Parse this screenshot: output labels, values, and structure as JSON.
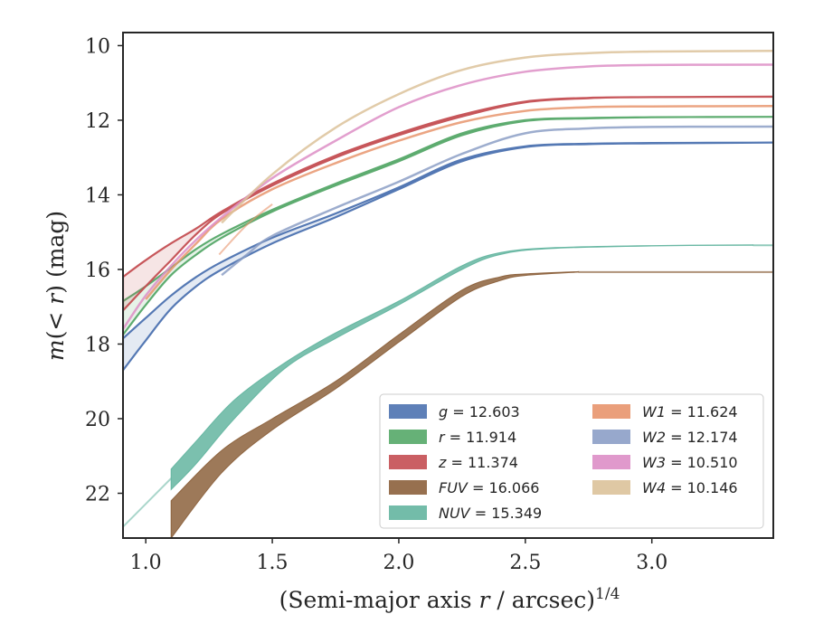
{
  "chart_data": {
    "type": "line",
    "xlabel": "(Semi-major axis r / arcsec)^{1/4}",
    "ylabel": "m(< r) (mag)",
    "xlim": [
      0.91,
      3.48
    ],
    "ylim": [
      23.2,
      9.65
    ],
    "y_inverted": true,
    "x_ticks": [
      "1.0",
      "1.5",
      "2.0",
      "2.5",
      "3.0"
    ],
    "y_ticks": [
      "10",
      "12",
      "14",
      "16",
      "18",
      "20",
      "22"
    ],
    "legend_position": "lower-right",
    "series": [
      {
        "key": "g",
        "name": "g = 12.603",
        "color": "#4c72b0",
        "width": 1,
        "upper": [
          [
            0.91,
            17.85
          ],
          [
            1.0,
            17.3
          ],
          [
            1.1,
            16.7
          ],
          [
            1.2,
            16.2
          ],
          [
            1.3,
            15.8
          ],
          [
            1.5,
            15.15
          ],
          [
            1.75,
            14.5
          ],
          [
            2.0,
            13.8
          ],
          [
            2.25,
            13.05
          ],
          [
            2.5,
            12.7
          ],
          [
            2.75,
            12.63
          ],
          [
            3.0,
            12.61
          ],
          [
            3.48,
            12.6
          ]
        ],
        "lower": [
          [
            0.91,
            18.7
          ],
          [
            1.0,
            17.9
          ],
          [
            1.1,
            17.05
          ],
          [
            1.2,
            16.45
          ],
          [
            1.3,
            16.0
          ],
          [
            1.5,
            15.3
          ],
          [
            1.75,
            14.6
          ],
          [
            2.0,
            13.85
          ],
          [
            2.25,
            13.1
          ],
          [
            2.5,
            12.72
          ],
          [
            2.75,
            12.64
          ],
          [
            3.0,
            12.62
          ],
          [
            3.48,
            12.6
          ]
        ]
      },
      {
        "key": "r",
        "name": "r = 11.914",
        "color": "#55a868",
        "width": 1,
        "upper": [
          [
            0.91,
            16.85
          ],
          [
            1.0,
            16.45
          ],
          [
            1.1,
            15.95
          ],
          [
            1.2,
            15.45
          ],
          [
            1.3,
            15.05
          ],
          [
            1.5,
            14.4
          ],
          [
            1.75,
            13.7
          ],
          [
            2.0,
            13.05
          ],
          [
            2.25,
            12.35
          ],
          [
            2.5,
            12.0
          ],
          [
            2.75,
            11.94
          ],
          [
            3.0,
            11.92
          ],
          [
            3.48,
            11.91
          ]
        ],
        "lower": [
          [
            0.91,
            17.75
          ],
          [
            1.0,
            16.95
          ],
          [
            1.1,
            16.15
          ],
          [
            1.2,
            15.6
          ],
          [
            1.3,
            15.15
          ],
          [
            1.5,
            14.45
          ],
          [
            1.75,
            13.75
          ],
          [
            2.0,
            13.1
          ],
          [
            2.25,
            12.4
          ],
          [
            2.5,
            12.02
          ],
          [
            2.75,
            11.95
          ],
          [
            3.0,
            11.92
          ],
          [
            3.48,
            11.91
          ]
        ]
      },
      {
        "key": "z",
        "name": "z = 11.374",
        "color": "#c44e52",
        "width": 1,
        "upper": [
          [
            0.91,
            16.2
          ],
          [
            1.0,
            15.75
          ],
          [
            1.1,
            15.3
          ],
          [
            1.2,
            14.9
          ],
          [
            1.3,
            14.45
          ],
          [
            1.5,
            13.7
          ],
          [
            1.75,
            12.95
          ],
          [
            2.0,
            12.35
          ],
          [
            2.25,
            11.85
          ],
          [
            2.5,
            11.5
          ],
          [
            2.75,
            11.4
          ],
          [
            3.0,
            11.38
          ],
          [
            3.48,
            11.37
          ]
        ],
        "lower": [
          [
            0.91,
            17.1
          ],
          [
            1.0,
            16.45
          ],
          [
            1.1,
            15.75
          ],
          [
            1.2,
            15.05
          ],
          [
            1.3,
            14.5
          ],
          [
            1.5,
            13.75
          ],
          [
            1.75,
            13.0
          ],
          [
            2.0,
            12.4
          ],
          [
            2.25,
            11.9
          ],
          [
            2.5,
            11.52
          ],
          [
            2.75,
            11.41
          ],
          [
            3.0,
            11.38
          ],
          [
            3.48,
            11.37
          ]
        ]
      },
      {
        "key": "FUV",
        "name": "FUV = 16.066",
        "color": "#8c613c",
        "width": 1,
        "upper": [
          [
            1.1,
            22.2
          ],
          [
            1.3,
            20.85
          ],
          [
            1.5,
            20.0
          ],
          [
            1.75,
            19.0
          ],
          [
            2.0,
            17.75
          ],
          [
            2.25,
            16.55
          ],
          [
            2.4,
            16.2
          ],
          [
            2.5,
            16.12
          ],
          [
            2.71,
            16.06
          ]
        ],
        "lower": [
          [
            1.1,
            23.2
          ],
          [
            1.3,
            21.45
          ],
          [
            1.5,
            20.3
          ],
          [
            1.75,
            19.2
          ],
          [
            2.0,
            17.95
          ],
          [
            2.25,
            16.72
          ],
          [
            2.4,
            16.3
          ],
          [
            2.5,
            16.16
          ],
          [
            2.71,
            16.07
          ]
        ],
        "tail": [
          [
            2.71,
            16.07
          ],
          [
            3.48,
            16.07
          ]
        ]
      },
      {
        "key": "NUV",
        "name": "NUV = 15.349",
        "color": "#64b5a0",
        "width": 1,
        "upper": [
          [
            1.1,
            21.35
          ],
          [
            1.2,
            20.6
          ],
          [
            1.35,
            19.5
          ],
          [
            1.55,
            18.5
          ],
          [
            1.75,
            17.7
          ],
          [
            2.0,
            16.85
          ],
          [
            2.25,
            15.9
          ],
          [
            2.4,
            15.55
          ],
          [
            2.6,
            15.42
          ],
          [
            3.0,
            15.36
          ],
          [
            3.4,
            15.34
          ]
        ],
        "lower": [
          [
            1.1,
            21.9
          ],
          [
            1.2,
            21.2
          ],
          [
            1.35,
            20.0
          ],
          [
            1.55,
            18.65
          ],
          [
            1.75,
            17.85
          ],
          [
            2.0,
            16.95
          ],
          [
            2.25,
            16.0
          ],
          [
            2.4,
            15.6
          ],
          [
            2.6,
            15.44
          ],
          [
            3.0,
            15.37
          ],
          [
            3.4,
            15.35
          ]
        ],
        "tail": [
          [
            3.4,
            15.35
          ],
          [
            3.48,
            15.35
          ]
        ],
        "lead": [
          [
            0.91,
            22.9
          ],
          [
            1.1,
            21.6
          ]
        ]
      },
      {
        "key": "W1",
        "name": "W1 = 11.624",
        "color": "#e8956d",
        "width": 2,
        "line": [
          [
            1.0,
            16.8
          ],
          [
            1.1,
            16.0
          ],
          [
            1.2,
            15.3
          ],
          [
            1.3,
            14.65
          ],
          [
            1.5,
            13.85
          ],
          [
            1.75,
            13.15
          ],
          [
            2.0,
            12.55
          ],
          [
            2.25,
            12.05
          ],
          [
            2.5,
            11.75
          ],
          [
            2.75,
            11.65
          ],
          [
            3.0,
            11.63
          ],
          [
            3.48,
            11.62
          ]
        ],
        "extra": [
          [
            1.29,
            15.6
          ],
          [
            1.4,
            14.8
          ],
          [
            1.5,
            14.25
          ]
        ]
      },
      {
        "key": "W2",
        "name": "W2 = 12.174",
        "color": "#8c9fc6",
        "width": 2,
        "line": [
          [
            1.3,
            16.15
          ],
          [
            1.4,
            15.6
          ],
          [
            1.5,
            15.1
          ],
          [
            1.75,
            14.35
          ],
          [
            2.0,
            13.65
          ],
          [
            2.25,
            12.9
          ],
          [
            2.5,
            12.35
          ],
          [
            2.75,
            12.22
          ],
          [
            3.0,
            12.18
          ],
          [
            3.48,
            12.17
          ]
        ]
      },
      {
        "key": "W3",
        "name": "W3 = 10.510",
        "color": "#dd8ec6",
        "width": 2,
        "line": [
          [
            0.91,
            17.6
          ],
          [
            1.0,
            16.7
          ],
          [
            1.1,
            15.9
          ],
          [
            1.2,
            15.2
          ],
          [
            1.3,
            14.6
          ],
          [
            1.5,
            13.55
          ],
          [
            1.75,
            12.55
          ],
          [
            2.0,
            11.65
          ],
          [
            2.25,
            11.05
          ],
          [
            2.5,
            10.7
          ],
          [
            2.75,
            10.56
          ],
          [
            3.0,
            10.52
          ],
          [
            3.48,
            10.51
          ]
        ]
      },
      {
        "key": "W4",
        "name": "W4 = 10.146",
        "color": "#dcc29a",
        "width": 2,
        "line": [
          [
            1.3,
            14.75
          ],
          [
            1.5,
            13.45
          ],
          [
            1.75,
            12.2
          ],
          [
            2.0,
            11.3
          ],
          [
            2.25,
            10.65
          ],
          [
            2.5,
            10.32
          ],
          [
            2.75,
            10.2
          ],
          [
            3.0,
            10.16
          ],
          [
            3.48,
            10.14
          ]
        ]
      }
    ]
  }
}
